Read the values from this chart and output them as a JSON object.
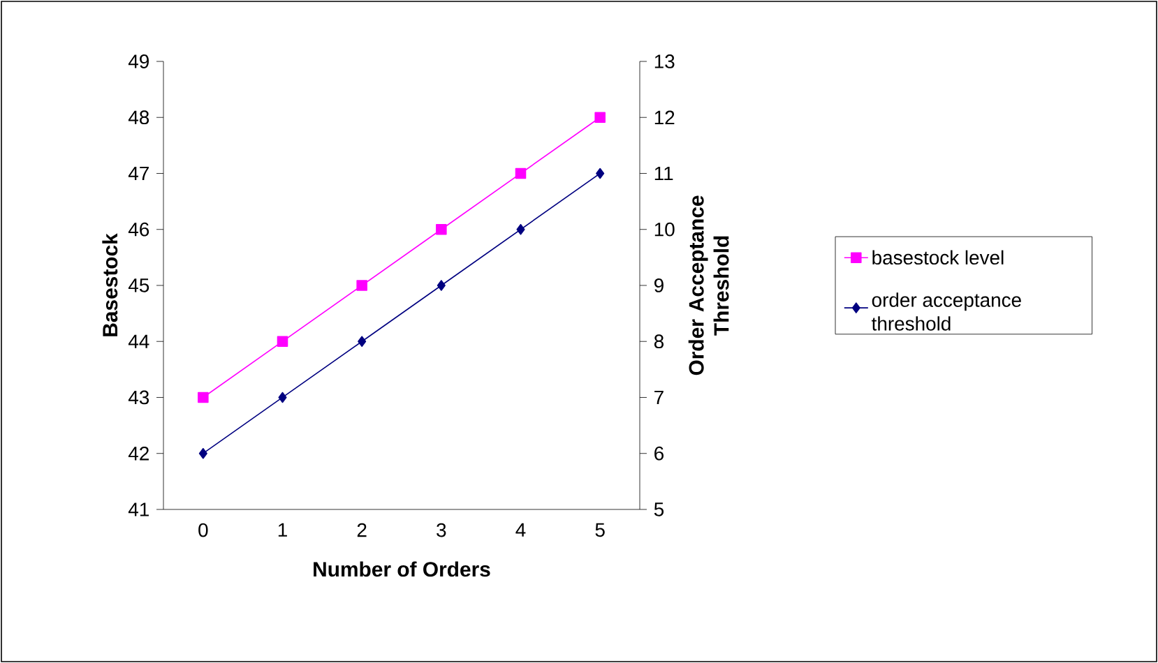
{
  "chart_data": {
    "type": "line",
    "xlabel": "Number of Orders",
    "ylabel": "Basestock",
    "y2label": "Order Acceptance Threshold",
    "categories": [
      "0",
      "1",
      "2",
      "3",
      "4",
      "5"
    ],
    "series": [
      {
        "name": "basestock level",
        "color": "#ff00ff",
        "values": [
          43,
          44,
          45,
          46,
          47,
          48
        ],
        "marker": "square"
      },
      {
        "name": "order acceptance threshold",
        "color": "#000080",
        "values": [
          6,
          7,
          8,
          9,
          10,
          11
        ],
        "axis": "y2",
        "marker": "diamond"
      }
    ],
    "ylim": [
      41,
      49
    ],
    "yticks": [
      41,
      42,
      43,
      44,
      45,
      46,
      47,
      48,
      49
    ],
    "y2lim": [
      5,
      13
    ],
    "y2ticks": [
      5,
      6,
      7,
      8,
      9,
      10,
      11,
      12,
      13
    ],
    "grid": false,
    "legend": "right",
    "line_style": "solid"
  }
}
